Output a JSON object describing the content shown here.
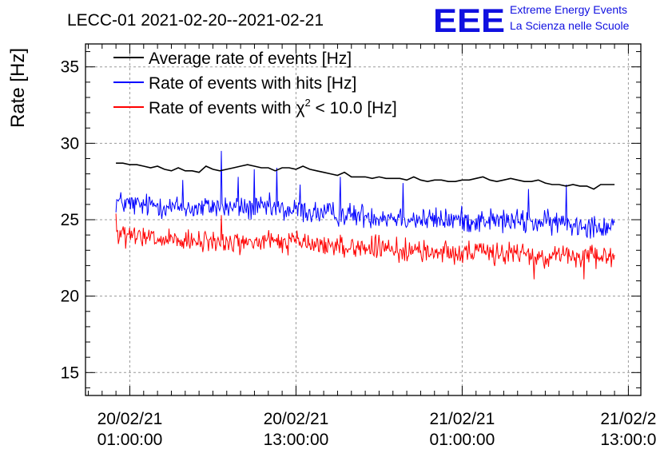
{
  "chart_data": {
    "type": "line",
    "title": "LECC-01 2021-02-20--2021-02-21",
    "ylabel": "Rate [Hz]",
    "xlabel": "",
    "ylim": [
      13.5,
      36.5
    ],
    "y_ticks": [
      15,
      20,
      25,
      30,
      35
    ],
    "x_ticks": [
      {
        "date": "20/02/21",
        "time": "01:00:00",
        "hours": 1
      },
      {
        "date": "20/02/21",
        "time": "13:00:00",
        "hours": 13
      },
      {
        "date": "21/02/21",
        "time": "01:00:00",
        "hours": 25
      },
      {
        "date": "21/02/2",
        "time": "13:00:0",
        "hours": 37
      }
    ],
    "xlim_hours": [
      -2.2,
      37.9
    ],
    "grid": true,
    "legend_position": "top-left",
    "logo": {
      "letters": "EEE",
      "line1": "Extreme Energy Events",
      "line2": "La Scienza nelle Scuole",
      "color": "#1010e0"
    },
    "series": [
      {
        "name": "Average rate of events [Hz]",
        "color": "#000000",
        "x_hours": [
          0.0,
          0.5,
          1.0,
          1.5,
          2.0,
          2.5,
          3.0,
          3.5,
          4.0,
          4.5,
          5.0,
          5.5,
          6.0,
          6.5,
          7.0,
          7.5,
          8.0,
          8.5,
          9.0,
          9.5,
          10.0,
          10.5,
          11.0,
          11.5,
          12.0,
          12.5,
          13.0,
          13.5,
          14.0,
          14.5,
          15.0,
          15.5,
          16.0,
          16.5,
          17.0,
          17.5,
          18.0,
          18.5,
          19.0,
          19.5,
          20.0,
          20.5,
          21.0,
          21.5,
          22.0,
          22.5,
          23.0,
          23.5,
          24.0,
          24.5,
          25.0,
          25.5,
          26.0,
          26.5,
          27.0,
          27.5,
          28.0,
          28.5,
          29.0,
          29.5,
          30.0,
          30.5,
          31.0,
          31.5,
          32.0,
          32.5,
          33.0,
          33.5,
          34.0,
          34.5,
          35.0,
          35.5,
          36.0
        ],
        "values": [
          28.7,
          28.7,
          28.6,
          28.6,
          28.5,
          28.4,
          28.5,
          28.3,
          28.2,
          28.4,
          28.2,
          28.2,
          28.1,
          28.5,
          28.3,
          28.2,
          28.3,
          28.4,
          28.5,
          28.6,
          28.5,
          28.4,
          28.4,
          28.2,
          28.4,
          28.4,
          28.3,
          28.5,
          28.3,
          28.2,
          28.1,
          28.0,
          27.9,
          28.1,
          27.8,
          27.8,
          27.8,
          27.7,
          27.8,
          27.7,
          27.7,
          27.7,
          27.6,
          27.8,
          27.6,
          27.5,
          27.6,
          27.6,
          27.5,
          27.5,
          27.6,
          27.6,
          27.7,
          27.8,
          27.6,
          27.5,
          27.6,
          27.7,
          27.6,
          27.5,
          27.5,
          27.6,
          27.4,
          27.3,
          27.3,
          27.2,
          27.3,
          27.2,
          27.2,
          27.0,
          27.3,
          27.3,
          27.3
        ]
      },
      {
        "name": "Rate of events with hits [Hz]",
        "color": "#0000ff",
        "x_hours": [
          0,
          1,
          2,
          3,
          4,
          5,
          6,
          7,
          8,
          9,
          10,
          11,
          12,
          13,
          14,
          15,
          16,
          17,
          18,
          19,
          20,
          21,
          22,
          23,
          24,
          25,
          26,
          27,
          28,
          29,
          30,
          31,
          32,
          33,
          34,
          35,
          36
        ],
        "values": [
          26.2,
          26.0,
          25.9,
          26.0,
          25.8,
          25.8,
          25.7,
          25.9,
          25.8,
          25.8,
          25.7,
          25.8,
          25.6,
          25.6,
          25.5,
          25.4,
          25.4,
          25.3,
          25.3,
          25.2,
          25.2,
          25.1,
          25.0,
          25.0,
          25.0,
          25.0,
          24.9,
          25.0,
          24.9,
          24.9,
          24.8,
          24.8,
          24.8,
          24.7,
          24.7,
          24.6,
          24.6
        ],
        "noise": 0.65,
        "peaks": [
          {
            "x_hours": 7.6,
            "value": 29.5
          },
          {
            "x_hours": 11.6,
            "value": 28.4
          },
          {
            "x_hours": 10.0,
            "value": 28.3
          },
          {
            "x_hours": 8.8,
            "value": 27.8
          },
          {
            "x_hours": 16.2,
            "value": 27.8
          },
          {
            "x_hours": 4.8,
            "value": 27.6
          },
          {
            "x_hours": 32.5,
            "value": 27.3
          },
          {
            "x_hours": 20.7,
            "value": 27.4
          },
          {
            "x_hours": 29.8,
            "value": 27.0
          },
          {
            "x_hours": 13.3,
            "value": 27.3
          }
        ]
      },
      {
        "name": "Rate of events with χ2 < 10.0 [Hz]",
        "color": "#ff0000",
        "x_hours": [
          0,
          1,
          2,
          3,
          4,
          5,
          6,
          7,
          8,
          9,
          10,
          11,
          12,
          13,
          14,
          15,
          16,
          17,
          18,
          19,
          20,
          21,
          22,
          23,
          24,
          25,
          26,
          27,
          28,
          29,
          30,
          31,
          32,
          33,
          34,
          35,
          36
        ],
        "values": [
          24.0,
          23.9,
          23.8,
          23.7,
          23.6,
          23.5,
          23.5,
          23.6,
          23.5,
          23.5,
          23.5,
          23.6,
          23.5,
          23.6,
          23.4,
          23.3,
          23.3,
          23.2,
          23.2,
          23.1,
          23.0,
          23.0,
          22.9,
          22.9,
          22.9,
          22.9,
          22.8,
          22.9,
          22.8,
          22.8,
          22.7,
          22.6,
          22.7,
          22.6,
          22.6,
          22.5,
          22.5
        ],
        "noise": 0.6,
        "peaks": [
          {
            "x_hours": 0.0,
            "value": 25.4
          },
          {
            "x_hours": 7.6,
            "value": 25.3
          },
          {
            "x_hours": 30.2,
            "value": 21.1
          },
          {
            "x_hours": 33.8,
            "value": 21.1
          }
        ]
      }
    ],
    "legend": {
      "avg": "Average rate of events [Hz]",
      "hits": "Rate of events with hits [Hz]",
      "chi2_prefix": "Rate of events with ",
      "chi2_symbol": "χ",
      "chi2_sup": "2",
      "chi2_suffix": " < 10.0 [Hz]"
    }
  }
}
